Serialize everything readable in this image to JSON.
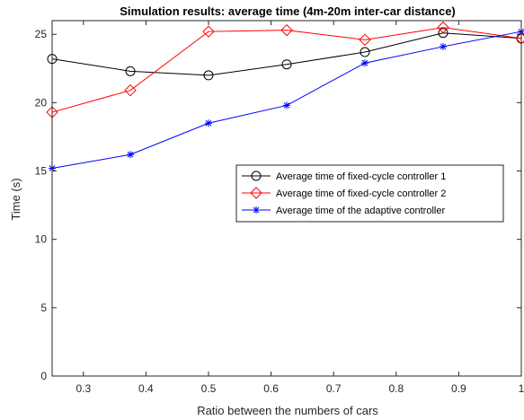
{
  "chart_data": {
    "type": "line",
    "title": "Simulation results: average time (4m-20m inter-car distance)",
    "xlabel": "Ratio between the numbers of cars",
    "ylabel": "Time (s)",
    "xlim": [
      0.25,
      1.0
    ],
    "ylim": [
      0,
      26
    ],
    "xticks": [
      0.3,
      0.4,
      0.5,
      0.6,
      0.7,
      0.8,
      0.9,
      1.0
    ],
    "xtick_labels": [
      "0.3",
      "0.4",
      "0.5",
      "0.6",
      "0.7",
      "0.8",
      "0.9",
      "1"
    ],
    "yticks": [
      0,
      5,
      10,
      15,
      20,
      25
    ],
    "ytick_labels": [
      "0",
      "5",
      "10",
      "15",
      "20",
      "25"
    ],
    "grid": false,
    "legend_position": "right",
    "x": [
      0.25,
      0.375,
      0.5,
      0.625,
      0.75,
      0.875,
      1.0
    ],
    "series": [
      {
        "name": "Average time of fixed-cycle controller 1",
        "color": "#000000",
        "marker": "circle",
        "values": [
          23.2,
          22.3,
          22.0,
          22.8,
          23.7,
          25.1,
          24.7
        ]
      },
      {
        "name": "Average time of fixed-cycle controller 2",
        "color": "#ff0000",
        "marker": "diamond",
        "values": [
          19.3,
          20.9,
          25.2,
          25.3,
          24.6,
          25.5,
          24.7
        ]
      },
      {
        "name": "Average time of the adaptive controller",
        "color": "#0000ff",
        "marker": "asterisk",
        "values": [
          15.2,
          16.2,
          18.5,
          19.8,
          22.9,
          24.1,
          25.2
        ]
      }
    ]
  }
}
